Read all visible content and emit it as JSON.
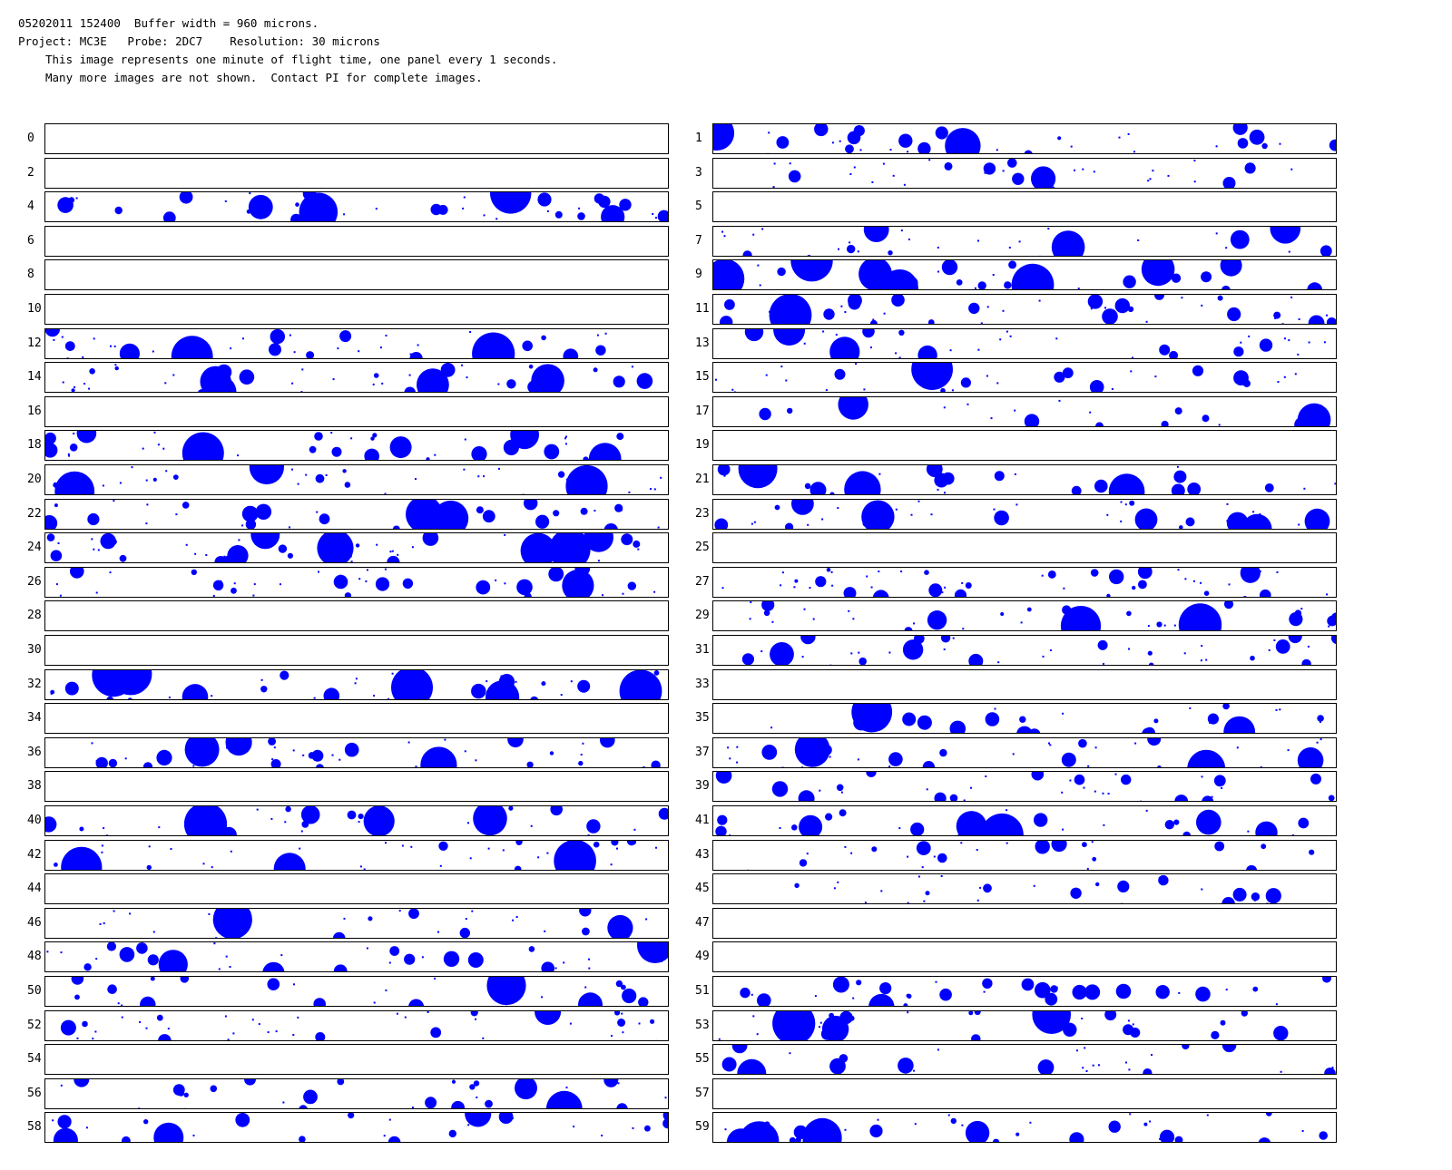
{
  "header": {
    "line1": "05202011 152400  Buffer width = 960 microns.",
    "line2": "Project: MC3E   Probe: 2DC7    Resolution: 30 microns",
    "line3": "This image represents one minute of flight time, one panel every 1 seconds.",
    "line4": "Many more images are not shown.  Contact PI for complete images."
  },
  "particle_color": "#0000ff",
  "panels": [
    {
      "label": "0",
      "empty": true
    },
    {
      "label": "1",
      "empty": false
    },
    {
      "label": "2",
      "empty": true
    },
    {
      "label": "3",
      "empty": false
    },
    {
      "label": "4",
      "empty": false
    },
    {
      "label": "5",
      "empty": true
    },
    {
      "label": "6",
      "empty": true
    },
    {
      "label": "7",
      "empty": false
    },
    {
      "label": "8",
      "empty": true
    },
    {
      "label": "9",
      "empty": false
    },
    {
      "label": "10",
      "empty": true
    },
    {
      "label": "11",
      "empty": false
    },
    {
      "label": "12",
      "empty": false
    },
    {
      "label": "13",
      "empty": false
    },
    {
      "label": "14",
      "empty": false
    },
    {
      "label": "15",
      "empty": false
    },
    {
      "label": "16",
      "empty": true
    },
    {
      "label": "17",
      "empty": false
    },
    {
      "label": "18",
      "empty": false
    },
    {
      "label": "19",
      "empty": true
    },
    {
      "label": "20",
      "empty": false
    },
    {
      "label": "21",
      "empty": false
    },
    {
      "label": "22",
      "empty": false
    },
    {
      "label": "23",
      "empty": false
    },
    {
      "label": "24",
      "empty": false
    },
    {
      "label": "25",
      "empty": true
    },
    {
      "label": "26",
      "empty": false
    },
    {
      "label": "27",
      "empty": false
    },
    {
      "label": "28",
      "empty": true
    },
    {
      "label": "29",
      "empty": false
    },
    {
      "label": "30",
      "empty": true
    },
    {
      "label": "31",
      "empty": false
    },
    {
      "label": "32",
      "empty": false
    },
    {
      "label": "33",
      "empty": true
    },
    {
      "label": "34",
      "empty": true
    },
    {
      "label": "35",
      "empty": false
    },
    {
      "label": "36",
      "empty": false
    },
    {
      "label": "37",
      "empty": false
    },
    {
      "label": "38",
      "empty": true
    },
    {
      "label": "39",
      "empty": false
    },
    {
      "label": "40",
      "empty": false
    },
    {
      "label": "41",
      "empty": false
    },
    {
      "label": "42",
      "empty": false
    },
    {
      "label": "43",
      "empty": false
    },
    {
      "label": "44",
      "empty": true
    },
    {
      "label": "45",
      "empty": false
    },
    {
      "label": "46",
      "empty": false
    },
    {
      "label": "47",
      "empty": true
    },
    {
      "label": "48",
      "empty": false
    },
    {
      "label": "49",
      "empty": true
    },
    {
      "label": "50",
      "empty": false
    },
    {
      "label": "51",
      "empty": false
    },
    {
      "label": "52",
      "empty": false
    },
    {
      "label": "53",
      "empty": false
    },
    {
      "label": "54",
      "empty": true
    },
    {
      "label": "55",
      "empty": false
    },
    {
      "label": "56",
      "empty": false
    },
    {
      "label": "57",
      "empty": true
    },
    {
      "label": "58",
      "empty": false
    },
    {
      "label": "59",
      "empty": false
    }
  ]
}
